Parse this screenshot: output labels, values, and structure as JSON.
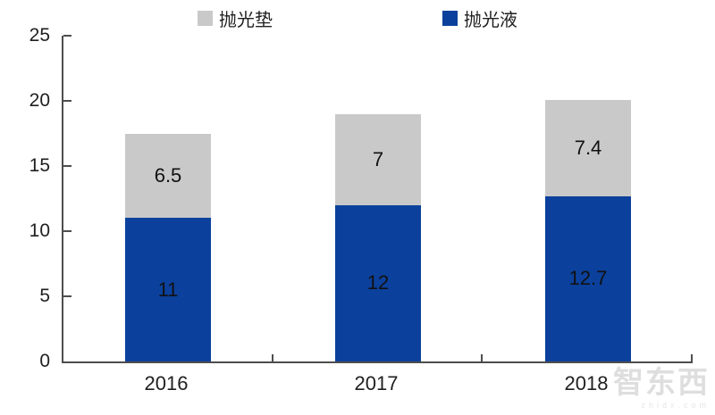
{
  "chart_data": {
    "type": "bar",
    "stacked": true,
    "title": "",
    "xlabel": "",
    "ylabel": "",
    "categories": [
      "2016",
      "2017",
      "2018"
    ],
    "series": [
      {
        "name": "抛光液",
        "color": "#0B419C",
        "values": [
          11,
          12,
          12.7
        ]
      },
      {
        "name": "抛光垫",
        "color": "#C9C9C9",
        "values": [
          6.5,
          7,
          7.4
        ]
      }
    ],
    "totals": [
      17.5,
      19,
      20.1
    ],
    "ylim": [
      0,
      25
    ],
    "yticks": [
      0,
      5,
      10,
      15,
      20,
      25
    ],
    "grid": false,
    "legend_position": "top"
  },
  "legend": {
    "items": [
      {
        "label": "抛光垫",
        "color": "#C9C9C9"
      },
      {
        "label": "抛光液",
        "color": "#0B419C"
      }
    ]
  },
  "colors": {
    "axis": "#4d4d4d",
    "text": "#1f1f1f",
    "background": "#ffffff"
  },
  "watermark": {
    "text": "智东西",
    "subtext": "zhidx.com"
  }
}
